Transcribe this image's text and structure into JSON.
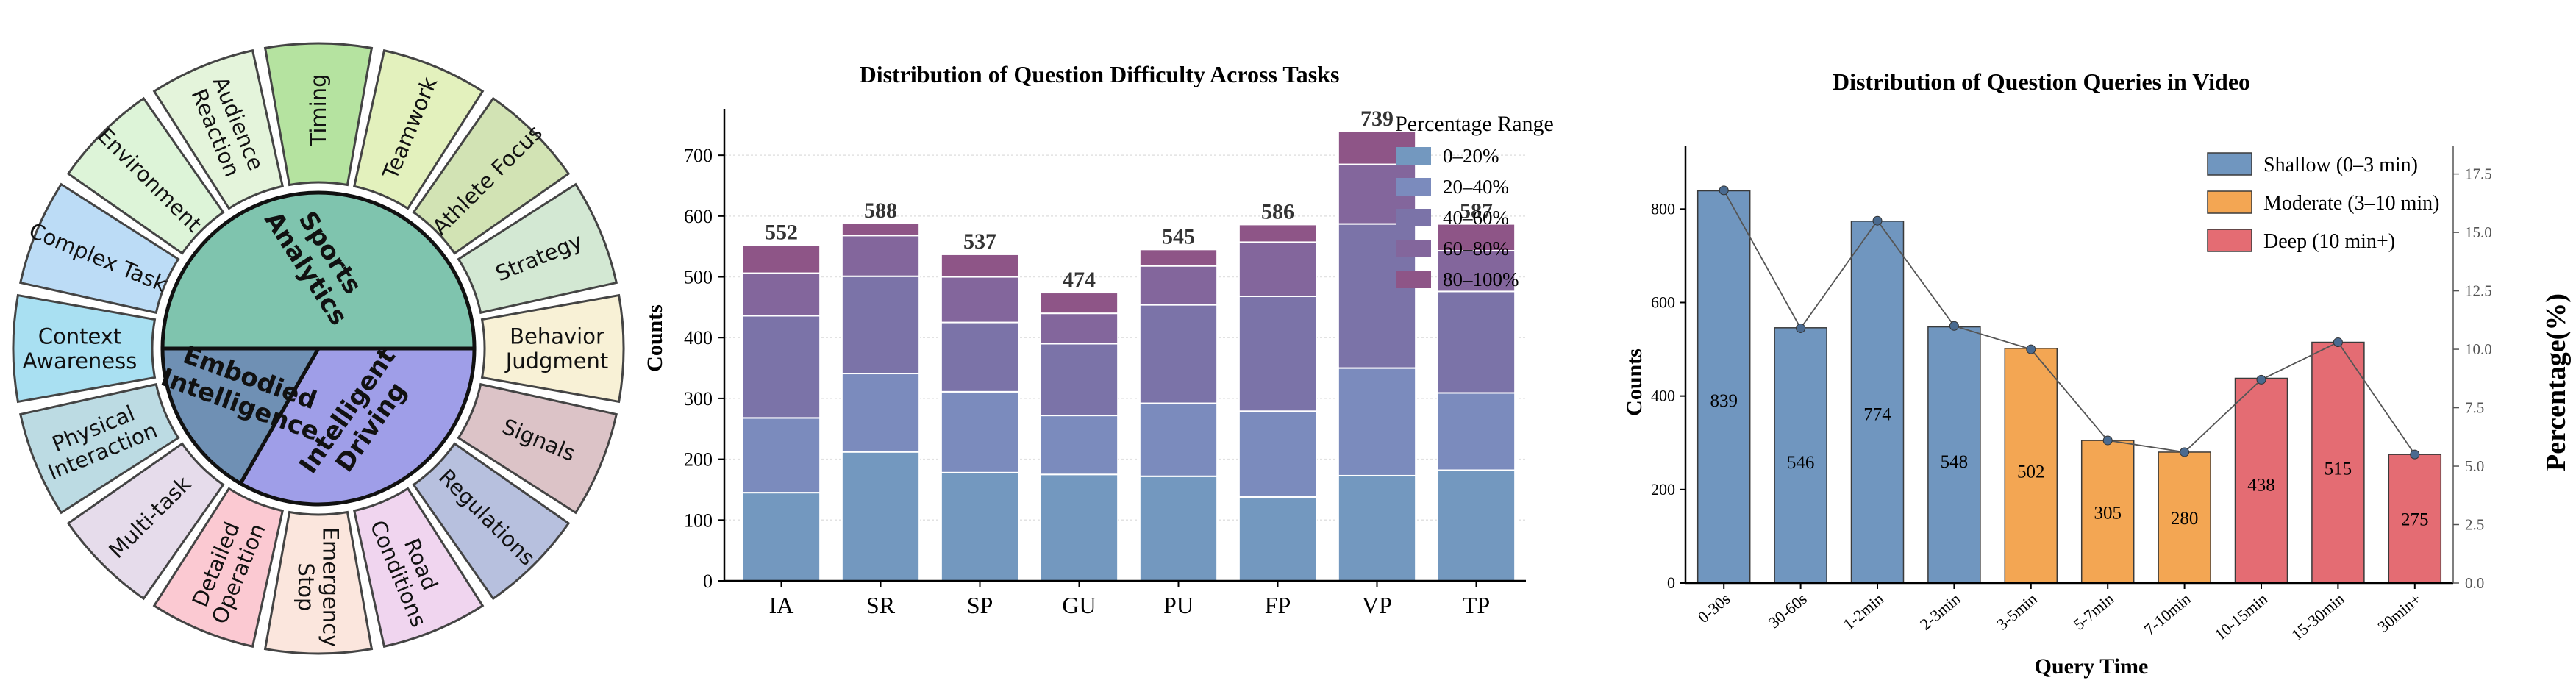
{
  "wheel": {
    "center": [
      {
        "label": "Sports\nAnalytics",
        "color": "#7fc4ae"
      },
      {
        "label": "Intelligent\nDriving",
        "color": "#9f9ee8"
      },
      {
        "label": "Embodied\nIntelligence",
        "color": "#6f90b4"
      }
    ],
    "outer": [
      {
        "label": "Timing",
        "color": "#b5e3a0"
      },
      {
        "label": "Teamwork",
        "color": "#e3f1bd"
      },
      {
        "label": "Athlete Focus",
        "color": "#d2e3b4"
      },
      {
        "label": "Strategy",
        "color": "#d3e8d3"
      },
      {
        "label": "Behavior\nJudgment",
        "color": "#f8f1d6"
      },
      {
        "label": "Signals",
        "color": "#dcc3c7"
      },
      {
        "label": "Regulations",
        "color": "#b7c0de"
      },
      {
        "label": "Road\nConditions",
        "color": "#f0d5ef"
      },
      {
        "label": "Emergency\nStop",
        "color": "#fbe6dd"
      },
      {
        "label": "Detailed\nOperation",
        "color": "#fbc9d2"
      },
      {
        "label": "Multi-task",
        "color": "#e6dceb"
      },
      {
        "label": "Physical\nInteraction",
        "color": "#bcdbe3"
      },
      {
        "label": "Context\nAwareness",
        "color": "#a9e0f2"
      },
      {
        "label": "Complex Task",
        "color": "#bcdcf6"
      },
      {
        "label": "Environment",
        "color": "#ddf4d8"
      },
      {
        "label": "Audience\nReaction",
        "color": "#e4f4db"
      }
    ]
  },
  "chart_data": [
    {
      "type": "bar",
      "stacked": true,
      "title": "Distribution of Question Difficulty Across Tasks",
      "ylabel": "Counts",
      "xlabel": "",
      "ylim": [
        0,
        780
      ],
      "yticks": [
        0,
        100,
        200,
        300,
        400,
        500,
        600,
        700
      ],
      "categories": [
        "IA",
        "SR",
        "SP",
        "GU",
        "PU",
        "FP",
        "VP",
        "TP"
      ],
      "totals": [
        552,
        588,
        537,
        474,
        545,
        586,
        739,
        587
      ],
      "legend_title": "Percentage Range",
      "legend_position": "top-right",
      "series": [
        {
          "name": "0–20%",
          "color": "#7398bf",
          "values": [
            145,
            212,
            178,
            175,
            172,
            138,
            173,
            182
          ]
        },
        {
          "name": "20–40%",
          "color": "#7b8bbd",
          "values": [
            123,
            129,
            133,
            97,
            120,
            141,
            177,
            127
          ]
        },
        {
          "name": "40–60%",
          "color": "#7b73a8",
          "values": [
            168,
            160,
            114,
            118,
            162,
            189,
            237,
            167
          ]
        },
        {
          "name": "60–80%",
          "color": "#83669c",
          "values": [
            70,
            67,
            75,
            50,
            64,
            89,
            98,
            67
          ]
        },
        {
          "name": "80–100%",
          "color": "#8e5587",
          "values": [
            46,
            20,
            37,
            34,
            27,
            29,
            54,
            44
          ]
        }
      ]
    },
    {
      "type": "bar",
      "title": "Distribution of Question Queries in Video",
      "xlabel": "Query Time",
      "ylabel": "Counts",
      "ylabel_right": "Percentage(%)",
      "ylim": [
        0,
        920
      ],
      "yticks": [
        0,
        200,
        400,
        600,
        800
      ],
      "ylim_right": [
        0,
        18.4
      ],
      "yticks_right": [
        "0.0",
        "2.5",
        "5.0",
        "7.5",
        "10.0",
        "12.5",
        "15.0",
        "17.5"
      ],
      "categories": [
        "0-30s",
        "30-60s",
        "1-2min",
        "2-3min",
        "3-5min",
        "5-7min",
        "7-10min",
        "10-15min",
        "15-30min",
        "30min+"
      ],
      "values": [
        839,
        546,
        774,
        548,
        502,
        305,
        280,
        438,
        515,
        275
      ],
      "groups": [
        "shallow",
        "shallow",
        "shallow",
        "shallow",
        "moderate",
        "moderate",
        "moderate",
        "deep",
        "deep",
        "deep"
      ],
      "percentages": [
        16.8,
        10.9,
        15.5,
        11.0,
        10.0,
        6.1,
        5.6,
        8.7,
        10.3,
        5.5
      ],
      "legend_position": "top-right",
      "legend": [
        {
          "key": "shallow",
          "name": "Shallow (0–3 min)",
          "color": "#7096bf"
        },
        {
          "key": "moderate",
          "name": "Moderate (3–10 min)",
          "color": "#f3a653"
        },
        {
          "key": "deep",
          "name": "Deep (10 min+)",
          "color": "#e46c73"
        }
      ]
    }
  ]
}
